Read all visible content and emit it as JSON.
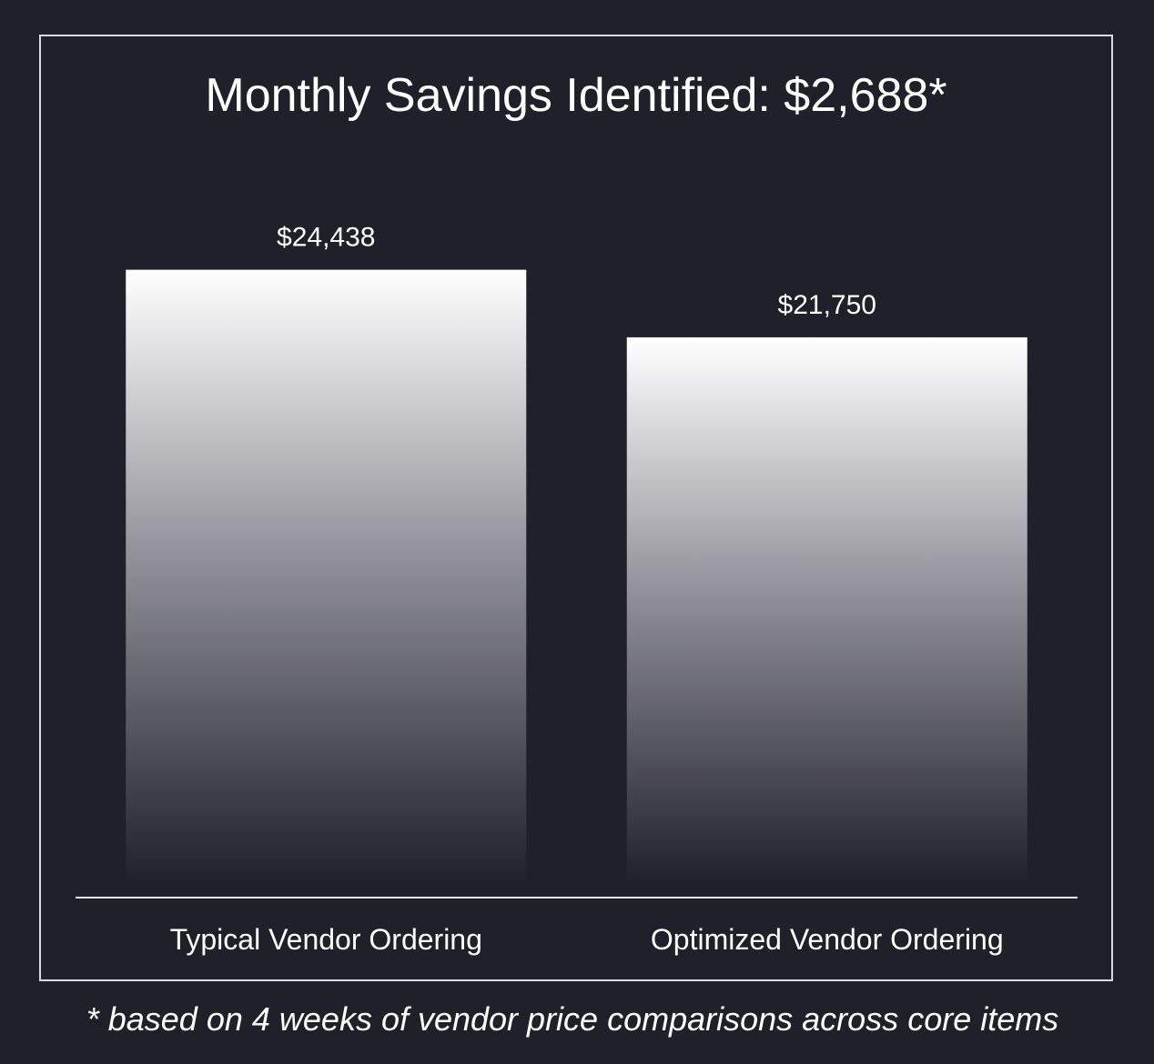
{
  "chart_data": {
    "type": "bar",
    "title": "Monthly Savings Identified: $2,688*",
    "categories": [
      "Typical Vendor Ordering",
      "Optimized Vendor Ordering"
    ],
    "values": [
      24438,
      21750
    ],
    "data_labels": [
      "$24,438",
      "$21,750"
    ],
    "xlabel": "",
    "ylabel": "",
    "ylim": [
      0,
      27500
    ],
    "grid": false,
    "legend": "none",
    "bar_gradient": {
      "top": "#ffffff",
      "bottom": "#20202a"
    },
    "footnote": "* based on 4 weeks of vendor price comparisons across core items"
  },
  "colors": {
    "background": "#20202a",
    "frame": "#d9d9de",
    "text": "#ffffff",
    "axis": "#e6e6ea"
  }
}
